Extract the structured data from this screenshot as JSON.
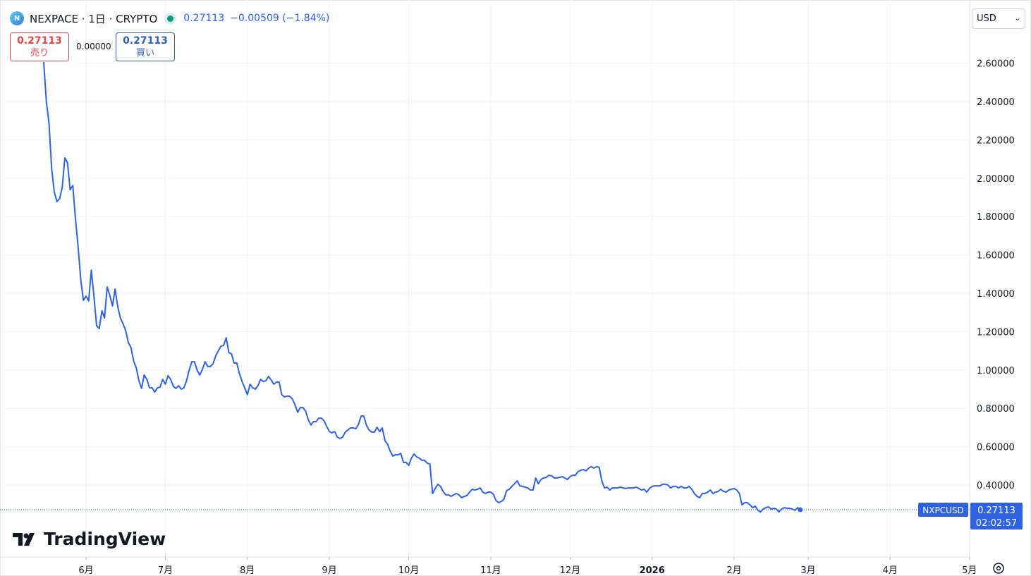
{
  "header": {
    "symbol": "NEXPACE · 1日 · CRYPTO",
    "price": "0.27113",
    "change": "−0.00509 (−1.84%)",
    "sell_price": "0.27113",
    "sell_label": "売り",
    "spread": "0.00000",
    "buy_price": "0.27113",
    "buy_label": "買い",
    "currency": "USD",
    "watermark": "TradingView"
  },
  "chart_data": {
    "type": "line",
    "symbol_tag": "NXPCUSD",
    "countdown": "02:02:57",
    "grid": true,
    "xlim": [
      0,
      365
    ],
    "ylim": [
      0.025,
      2.911
    ],
    "xticks": [
      {
        "value": 31,
        "label": "6月"
      },
      {
        "value": 61,
        "label": "7月"
      },
      {
        "value": 92,
        "label": "8月"
      },
      {
        "value": 123,
        "label": "9月"
      },
      {
        "value": 153,
        "label": "10月"
      },
      {
        "value": 184,
        "label": "11月"
      },
      {
        "value": 214,
        "label": "12月"
      },
      {
        "value": 245,
        "label": "2026",
        "emphasis": true
      },
      {
        "value": 276,
        "label": "2月"
      },
      {
        "value": 304,
        "label": "3月"
      },
      {
        "value": 335,
        "label": "4月"
      },
      {
        "value": 365,
        "label": "5月"
      }
    ],
    "yticks": [
      {
        "value": 0.4,
        "label": "0.40000"
      },
      {
        "value": 0.6,
        "label": "0.60000"
      },
      {
        "value": 0.8,
        "label": "0.80000"
      },
      {
        "value": 1.0,
        "label": "1.00000"
      },
      {
        "value": 1.2,
        "label": "1.20000"
      },
      {
        "value": 1.4,
        "label": "1.40000"
      },
      {
        "value": 1.6,
        "label": "1.60000"
      },
      {
        "value": 1.8,
        "label": "1.80000"
      },
      {
        "value": 2.0,
        "label": "2.00000"
      },
      {
        "value": 2.2,
        "label": "2.20000"
      },
      {
        "value": 2.4,
        "label": "2.40000"
      },
      {
        "value": 2.6,
        "label": "2.60000"
      }
    ],
    "x": [
      15,
      16,
      17,
      18,
      19,
      20,
      21,
      22,
      23,
      24,
      25,
      26,
      27,
      28,
      29,
      30,
      31,
      32,
      33,
      34,
      35,
      36,
      37,
      38,
      39,
      40,
      41,
      42,
      43,
      44,
      45,
      46,
      47,
      48,
      49,
      50,
      51,
      52,
      53,
      54,
      55,
      56,
      57,
      58,
      59,
      60,
      61,
      62,
      63,
      64,
      65,
      66,
      67,
      68,
      69,
      70,
      71,
      72,
      73,
      74,
      75,
      76,
      77,
      78,
      79,
      80,
      81,
      82,
      83,
      84,
      85,
      86,
      87,
      88,
      89,
      90,
      91,
      92,
      93,
      94,
      95,
      96,
      97,
      98,
      99,
      100,
      101,
      102,
      103,
      104,
      105,
      106,
      107,
      108,
      109,
      110,
      111,
      112,
      113,
      114,
      115,
      116,
      117,
      118,
      119,
      120,
      121,
      122,
      123,
      124,
      125,
      126,
      127,
      128,
      129,
      130,
      131,
      132,
      133,
      134,
      135,
      136,
      137,
      138,
      139,
      140,
      141,
      142,
      143,
      144,
      145,
      146,
      147,
      148,
      149,
      150,
      151,
      152,
      153,
      154,
      155,
      156,
      157,
      158,
      159,
      160,
      161,
      162,
      163,
      164,
      165,
      166,
      167,
      168,
      169,
      170,
      171,
      172,
      173,
      174,
      175,
      176,
      177,
      178,
      179,
      180,
      181,
      182,
      183,
      184,
      185,
      186,
      187,
      188,
      189,
      190,
      191,
      192,
      193,
      194,
      195,
      196,
      197,
      198,
      199,
      200,
      201,
      202,
      203,
      204,
      205,
      206,
      207,
      208,
      209,
      210,
      211,
      212,
      213,
      214,
      215,
      216,
      217,
      218,
      219,
      220,
      221,
      222,
      223,
      224,
      225,
      226,
      227,
      228,
      229,
      230,
      231,
      232,
      233,
      234,
      235,
      236,
      237,
      238,
      239,
      240,
      241,
      242,
      243,
      244,
      245,
      246,
      247,
      248,
      249,
      250,
      251,
      252,
      253,
      254,
      255,
      256,
      257,
      258,
      259,
      260,
      261,
      262,
      263,
      264,
      265,
      266,
      267,
      268,
      269,
      270,
      271,
      272,
      273,
      274,
      275,
      276,
      277,
      278,
      279,
      280,
      281,
      282,
      283,
      284,
      285,
      286,
      287,
      288,
      289,
      290,
      291,
      292,
      293,
      294,
      295,
      296,
      297,
      298,
      299,
      300,
      301
    ],
    "series": [
      {
        "name": "NXPCUSD",
        "color": "#2f62e0",
        "values": [
          2.606,
          2.4,
          2.289,
          2.051,
          1.929,
          1.878,
          1.893,
          1.951,
          2.106,
          2.081,
          1.94,
          1.962,
          1.79,
          1.643,
          1.473,
          1.363,
          1.385,
          1.36,
          1.521,
          1.385,
          1.231,
          1.216,
          1.308,
          1.271,
          1.433,
          1.389,
          1.334,
          1.422,
          1.33,
          1.271,
          1.241,
          1.205,
          1.143,
          1.117,
          1.047,
          1.01,
          0.944,
          0.904,
          0.974,
          0.951,
          0.907,
          0.907,
          0.885,
          0.907,
          0.911,
          0.951,
          0.926,
          0.97,
          0.951,
          0.915,
          0.904,
          0.918,
          0.9,
          0.907,
          0.944,
          0.999,
          1.043,
          1.043,
          0.999,
          0.974,
          1.003,
          1.043,
          1.018,
          1.018,
          1.032,
          1.073,
          1.099,
          1.124,
          1.128,
          1.168,
          1.091,
          1.084,
          1.036,
          1.036,
          0.981,
          0.94,
          0.907,
          0.871,
          0.926,
          0.907,
          0.9,
          0.918,
          0.951,
          0.94,
          0.944,
          0.966,
          0.948,
          0.926,
          0.937,
          0.937,
          0.871,
          0.86,
          0.863,
          0.863,
          0.849,
          0.819,
          0.779,
          0.804,
          0.804,
          0.786,
          0.742,
          0.713,
          0.731,
          0.731,
          0.749,
          0.749,
          0.735,
          0.705,
          0.679,
          0.672,
          0.679,
          0.65,
          0.643,
          0.65,
          0.676,
          0.687,
          0.698,
          0.698,
          0.694,
          0.716,
          0.76,
          0.76,
          0.713,
          0.687,
          0.676,
          0.676,
          0.701,
          0.679,
          0.698,
          0.632,
          0.613,
          0.576,
          0.551,
          0.558,
          0.558,
          0.565,
          0.518,
          0.518,
          0.503,
          0.54,
          0.562,
          0.547,
          0.54,
          0.529,
          0.529,
          0.514,
          0.51,
          0.356,
          0.382,
          0.404,
          0.393,
          0.367,
          0.349,
          0.349,
          0.341,
          0.349,
          0.356,
          0.349,
          0.334,
          0.341,
          0.345,
          0.363,
          0.378,
          0.374,
          0.378,
          0.385,
          0.363,
          0.356,
          0.363,
          0.363,
          0.352,
          0.319,
          0.308,
          0.315,
          0.326,
          0.371,
          0.378,
          0.393,
          0.407,
          0.422,
          0.396,
          0.393,
          0.389,
          0.385,
          0.374,
          0.374,
          0.437,
          0.407,
          0.429,
          0.437,
          0.44,
          0.451,
          0.448,
          0.437,
          0.437,
          0.44,
          0.444,
          0.437,
          0.429,
          0.444,
          0.451,
          0.451,
          0.47,
          0.477,
          0.481,
          0.474,
          0.488,
          0.496,
          0.488,
          0.496,
          0.492,
          0.422,
          0.385,
          0.389,
          0.374,
          0.385,
          0.385,
          0.385,
          0.389,
          0.385,
          0.382,
          0.385,
          0.385,
          0.385,
          0.389,
          0.382,
          0.374,
          0.378,
          0.363,
          0.382,
          0.393,
          0.396,
          0.396,
          0.396,
          0.404,
          0.404,
          0.4,
          0.385,
          0.393,
          0.393,
          0.385,
          0.393,
          0.385,
          0.385,
          0.393,
          0.378,
          0.356,
          0.341,
          0.334,
          0.356,
          0.356,
          0.363,
          0.374,
          0.356,
          0.363,
          0.367,
          0.378,
          0.367,
          0.363,
          0.374,
          0.378,
          0.382,
          0.374,
          0.356,
          0.297,
          0.308,
          0.308,
          0.297,
          0.282,
          0.29,
          0.268,
          0.26,
          0.275,
          0.282,
          0.286,
          0.275,
          0.279,
          0.275,
          0.26,
          0.275,
          0.282,
          0.279,
          0.279,
          0.275,
          0.268,
          0.282,
          0.27113
        ]
      }
    ]
  }
}
